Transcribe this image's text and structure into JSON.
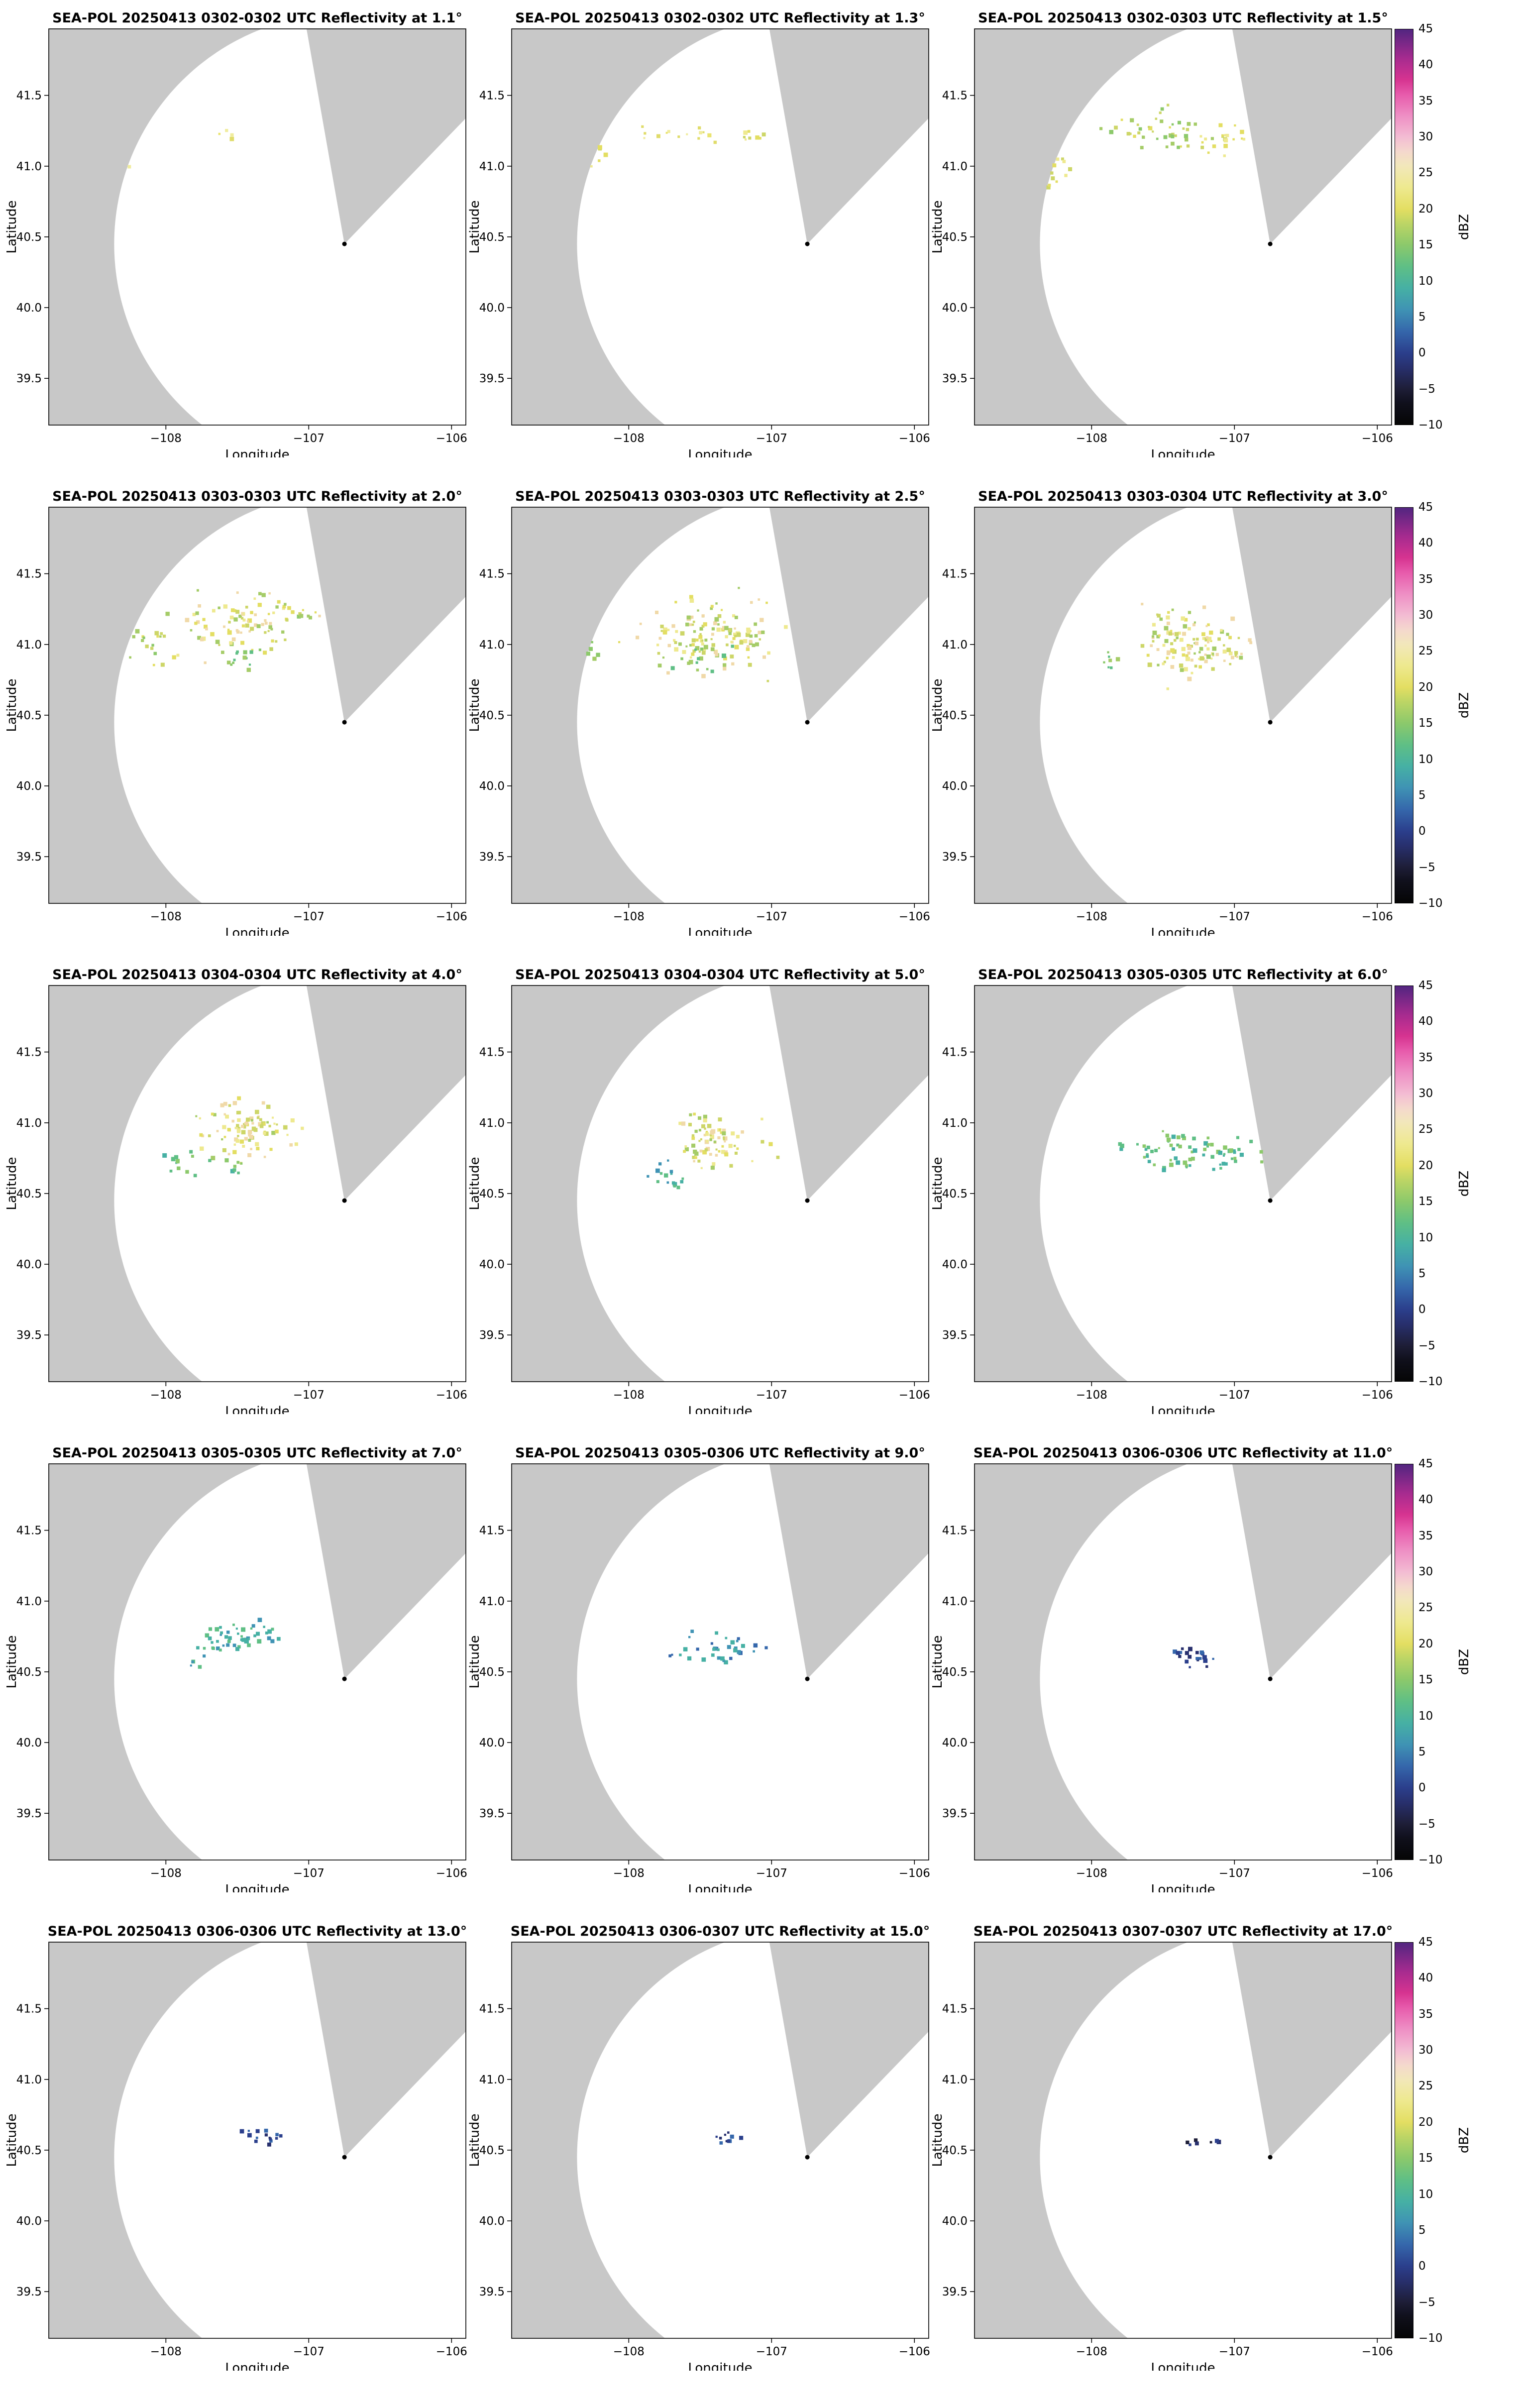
{
  "figure": {
    "xlabel": "Longitude",
    "ylabel": "Latitude",
    "colorbar_label": "dBZ"
  },
  "chart_data": {
    "type": "heatmap",
    "subtype": "radar_ppi_multipanel",
    "rows": 5,
    "cols": 3,
    "xlabel": "Longitude",
    "ylabel": "Latitude",
    "xlim": [
      -108.82,
      -105.9
    ],
    "ylim": [
      39.17,
      41.97
    ],
    "xticks": [
      -108,
      -107,
      -106
    ],
    "yticks": [
      39.5,
      40.0,
      40.5,
      41.0,
      41.5
    ],
    "xtick_labels": [
      "−108",
      "−107",
      "−106"
    ],
    "ytick_labels": [
      "39.5",
      "40.0",
      "40.5",
      "41.0",
      "41.5"
    ],
    "grid": false,
    "colors": {
      "no_data_gray": "#c8c8c8",
      "coverage_white": "#ffffff",
      "frame": "#000000"
    },
    "radar": {
      "lon": -106.75,
      "lat": 40.45,
      "coverage_radius_deg": 1.62,
      "missing_sector_az": [
        -10,
        44
      ]
    },
    "colorbar": {
      "label": "dBZ",
      "min": -10,
      "max": 45,
      "tick_values": [
        45,
        40,
        35,
        30,
        25,
        20,
        15,
        10,
        5,
        0,
        -5,
        -10
      ],
      "tick_labels": [
        "45",
        "40",
        "35",
        "30",
        "25",
        "20",
        "15",
        "10",
        "5",
        "0",
        "−5",
        "−10"
      ],
      "stops": [
        {
          "v": -10,
          "c": "#050505"
        },
        {
          "v": -7,
          "c": "#10101c"
        },
        {
          "v": -5,
          "c": "#1e1e38"
        },
        {
          "v": -2,
          "c": "#28306e"
        },
        {
          "v": 0,
          "c": "#2b3f8c"
        },
        {
          "v": 3,
          "c": "#3567ab"
        },
        {
          "v": 6,
          "c": "#3f93b4"
        },
        {
          "v": 9,
          "c": "#46b0a4"
        },
        {
          "v": 12,
          "c": "#5fbf85"
        },
        {
          "v": 15,
          "c": "#8cc96b"
        },
        {
          "v": 18,
          "c": "#bdd565"
        },
        {
          "v": 20,
          "c": "#e3de62"
        },
        {
          "v": 23,
          "c": "#eee98f"
        },
        {
          "v": 26,
          "c": "#f2e7bb"
        },
        {
          "v": 28,
          "c": "#f4d8cd"
        },
        {
          "v": 30,
          "c": "#f3bcd3"
        },
        {
          "v": 33,
          "c": "#ee8ec4"
        },
        {
          "v": 36,
          "c": "#e75aab"
        },
        {
          "v": 38,
          "c": "#d63390"
        },
        {
          "v": 41,
          "c": "#a62b8f"
        },
        {
          "v": 45,
          "c": "#522580"
        }
      ]
    },
    "palettes": {
      "py": [
        "#eae470",
        "#e0dc6a",
        "#f0ec9e"
      ],
      "yl": [
        "#e3de62",
        "#eee98f",
        "#cdd668"
      ],
      "yg": [
        "#cdd668",
        "#a5cc68",
        "#e3de62",
        "#8cc96b"
      ],
      "ylc": [
        "#e3de62",
        "#eee98f",
        "#f0d9a8",
        "#cdd668",
        "#a5cc68"
      ],
      "gn": [
        "#8cc96b",
        "#5fbf85",
        "#a5cc68"
      ],
      "gt": [
        "#5fbf85",
        "#46b0a4",
        "#8cc96b"
      ],
      "tl": [
        "#46b0a4",
        "#3f93b4",
        "#5fbf85"
      ],
      "bl": [
        "#3f93b4",
        "#3567ab",
        "#46b0a4"
      ],
      "nv": [
        "#2b3f8c",
        "#28306e",
        "#3567ab"
      ],
      "nd": [
        "#28306e",
        "#1e1e38",
        "#2b3f8c"
      ]
    },
    "panels": [
      {
        "title": "SEA-POL 20250413 0302-0302 UTC Reflectivity at 1.1°",
        "date": "20250413",
        "time_utc": "0302-0302",
        "elevation_deg": 1.1,
        "seed": 101,
        "clusters": [
          {
            "lon": -108.25,
            "lat": 40.98,
            "sx": 0.05,
            "sy": 0.035,
            "n": 6,
            "palette": "py"
          },
          {
            "lon": -107.55,
            "lat": 41.22,
            "sx": 0.05,
            "sy": 0.03,
            "n": 4,
            "palette": "py"
          }
        ]
      },
      {
        "title": "SEA-POL 20250413 0302-0302 UTC Reflectivity at 1.3°",
        "date": "20250413",
        "time_utc": "0302-0302",
        "elevation_deg": 1.3,
        "seed": 102,
        "clusters": [
          {
            "lon": -108.28,
            "lat": 41.0,
            "sx": 0.08,
            "sy": 0.055,
            "n": 16,
            "palette": "yl"
          },
          {
            "lon": -107.6,
            "lat": 41.24,
            "sx": 0.15,
            "sy": 0.05,
            "n": 14,
            "palette": "py"
          },
          {
            "lon": -107.15,
            "lat": 41.22,
            "sx": 0.07,
            "sy": 0.04,
            "n": 9,
            "palette": "yl"
          }
        ]
      },
      {
        "title": "SEA-POL 20250413 0302-0303 UTC Reflectivity at 1.5°",
        "date": "20250413",
        "time_utc": "0302-0303",
        "elevation_deg": 1.5,
        "seed": 103,
        "clusters": [
          {
            "lon": -108.3,
            "lat": 40.98,
            "sx": 0.09,
            "sy": 0.06,
            "n": 20,
            "palette": "yl"
          },
          {
            "lon": -107.55,
            "lat": 41.25,
            "sx": 0.2,
            "sy": 0.08,
            "n": 45,
            "palette": "yg"
          },
          {
            "lon": -107.12,
            "lat": 41.2,
            "sx": 0.08,
            "sy": 0.05,
            "n": 20,
            "palette": "yl"
          }
        ]
      },
      {
        "title": "SEA-POL 20250413 0303-0303 UTC Reflectivity at 2.0°",
        "date": "20250413",
        "time_utc": "0303-0303",
        "elevation_deg": 2.0,
        "seed": 104,
        "clusters": [
          {
            "lon": -108.18,
            "lat": 41.02,
            "sx": 0.1,
            "sy": 0.07,
            "n": 26,
            "palette": "yg"
          },
          {
            "lon": -107.45,
            "lat": 41.16,
            "sx": 0.2,
            "sy": 0.11,
            "n": 85,
            "palette": "ylc"
          },
          {
            "lon": -107.5,
            "lat": 40.9,
            "sx": 0.09,
            "sy": 0.05,
            "n": 14,
            "palette": "gn"
          },
          {
            "lon": -107.08,
            "lat": 41.24,
            "sx": 0.06,
            "sy": 0.04,
            "n": 10,
            "palette": "yg"
          }
        ]
      },
      {
        "title": "SEA-POL 20250413 0303-0303 UTC Reflectivity at 2.5°",
        "date": "20250413",
        "time_utc": "0303-0303",
        "elevation_deg": 2.5,
        "seed": 105,
        "clusters": [
          {
            "lon": -108.25,
            "lat": 40.95,
            "sx": 0.07,
            "sy": 0.05,
            "n": 9,
            "palette": "yg"
          },
          {
            "lon": -107.38,
            "lat": 41.06,
            "sx": 0.23,
            "sy": 0.12,
            "n": 140,
            "palette": "ylc"
          },
          {
            "lon": -107.5,
            "lat": 40.9,
            "sx": 0.1,
            "sy": 0.05,
            "n": 16,
            "palette": "gn"
          }
        ]
      },
      {
        "title": "SEA-POL 20250413 0303-0304 UTC Reflectivity at 3.0°",
        "date": "20250413",
        "time_utc": "0303-0304",
        "elevation_deg": 3.0,
        "seed": 106,
        "clusters": [
          {
            "lon": -107.28,
            "lat": 41.0,
            "sx": 0.19,
            "sy": 0.11,
            "n": 130,
            "palette": "ylc"
          },
          {
            "lon": -107.85,
            "lat": 40.9,
            "sx": 0.05,
            "sy": 0.04,
            "n": 7,
            "palette": "gn"
          }
        ]
      },
      {
        "title": "SEA-POL 20250413 0304-0304 UTC Reflectivity at 4.0°",
        "date": "20250413",
        "time_utc": "0304-0304",
        "elevation_deg": 4.0,
        "seed": 107,
        "clusters": [
          {
            "lon": -107.45,
            "lat": 40.94,
            "sx": 0.16,
            "sy": 0.1,
            "n": 95,
            "palette": "ylc"
          },
          {
            "lon": -107.9,
            "lat": 40.72,
            "sx": 0.06,
            "sy": 0.05,
            "n": 12,
            "palette": "gt"
          },
          {
            "lon": -107.55,
            "lat": 40.68,
            "sx": 0.06,
            "sy": 0.04,
            "n": 8,
            "palette": "gt"
          }
        ]
      },
      {
        "title": "SEA-POL 20250413 0304-0304 UTC Reflectivity at 5.0°",
        "date": "20250413",
        "time_utc": "0304-0304",
        "elevation_deg": 5.0,
        "seed": 108,
        "clusters": [
          {
            "lon": -107.38,
            "lat": 40.87,
            "sx": 0.15,
            "sy": 0.09,
            "n": 80,
            "palette": "ylc"
          },
          {
            "lon": -107.7,
            "lat": 40.62,
            "sx": 0.09,
            "sy": 0.05,
            "n": 16,
            "palette": "tl"
          }
        ]
      },
      {
        "title": "SEA-POL 20250413 0305-0305 UTC Reflectivity at 6.0°",
        "date": "20250413",
        "time_utc": "0305-0305",
        "elevation_deg": 6.0,
        "seed": 109,
        "clusters": [
          {
            "lon": -107.35,
            "lat": 40.8,
            "sx": 0.21,
            "sy": 0.07,
            "n": 65,
            "palette": "gt"
          },
          {
            "lon": -107.02,
            "lat": 40.78,
            "sx": 0.05,
            "sy": 0.04,
            "n": 10,
            "palette": "gt"
          }
        ]
      },
      {
        "title": "SEA-POL 20250413 0305-0305 UTC Reflectivity at 7.0°",
        "date": "20250413",
        "time_utc": "0305-0305",
        "elevation_deg": 7.0,
        "seed": 110,
        "clusters": [
          {
            "lon": -107.5,
            "lat": 40.73,
            "sx": 0.15,
            "sy": 0.06,
            "n": 50,
            "palette": "tl"
          },
          {
            "lon": -107.8,
            "lat": 40.56,
            "sx": 0.04,
            "sy": 0.03,
            "n": 5,
            "palette": "tl"
          }
        ]
      },
      {
        "title": "SEA-POL 20250413 0305-0306 UTC Reflectivity at 9.0°",
        "date": "20250413",
        "time_utc": "0305-0306",
        "elevation_deg": 9.0,
        "seed": 111,
        "clusters": [
          {
            "lon": -107.35,
            "lat": 40.66,
            "sx": 0.15,
            "sy": 0.05,
            "n": 34,
            "palette": "bl"
          }
        ]
      },
      {
        "title": "SEA-POL 20250413 0306-0306 UTC Reflectivity at 11.0°",
        "date": "20250413",
        "time_utc": "0306-0306",
        "elevation_deg": 11.0,
        "seed": 112,
        "clusters": [
          {
            "lon": -107.3,
            "lat": 40.62,
            "sx": 0.09,
            "sy": 0.04,
            "n": 20,
            "palette": "nv"
          }
        ]
      },
      {
        "title": "SEA-POL 20250413 0306-0306 UTC Reflectivity at 13.0°",
        "date": "20250413",
        "time_utc": "0306-0306",
        "elevation_deg": 13.0,
        "seed": 113,
        "clusters": [
          {
            "lon": -107.32,
            "lat": 40.6,
            "sx": 0.07,
            "sy": 0.03,
            "n": 15,
            "palette": "nv"
          }
        ]
      },
      {
        "title": "SEA-POL 20250413 0306-0307 UTC Reflectivity at 15.0°",
        "date": "20250413",
        "time_utc": "0306-0307",
        "elevation_deg": 15.0,
        "seed": 114,
        "clusters": [
          {
            "lon": -107.3,
            "lat": 40.58,
            "sx": 0.05,
            "sy": 0.025,
            "n": 10,
            "palette": "nv"
          }
        ]
      },
      {
        "title": "SEA-POL 20250413 0307-0307 UTC Reflectivity at 17.0°",
        "date": "20250413",
        "time_utc": "0307-0307",
        "elevation_deg": 17.0,
        "seed": 115,
        "clusters": [
          {
            "lon": -107.32,
            "lat": 40.55,
            "sx": 0.04,
            "sy": 0.02,
            "n": 5,
            "palette": "nd"
          },
          {
            "lon": -107.15,
            "lat": 40.55,
            "sx": 0.03,
            "sy": 0.02,
            "n": 3,
            "palette": "nd"
          }
        ]
      }
    ]
  }
}
